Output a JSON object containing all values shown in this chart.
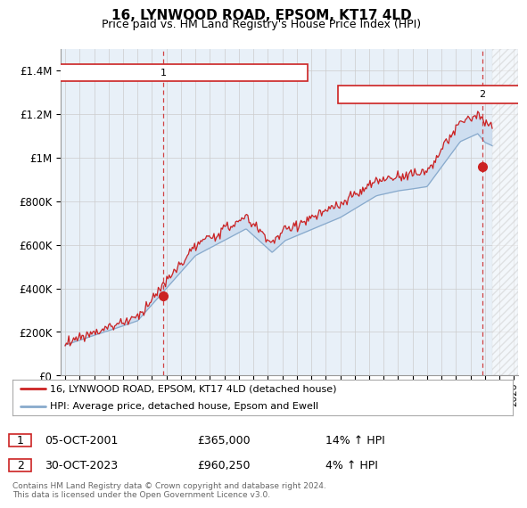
{
  "title": "16, LYNWOOD ROAD, EPSOM, KT17 4LD",
  "subtitle": "Price paid vs. HM Land Registry's House Price Index (HPI)",
  "ylabel_ticks": [
    "£0",
    "£200K",
    "£400K",
    "£600K",
    "£800K",
    "£1M",
    "£1.2M",
    "£1.4M"
  ],
  "ytick_values": [
    0,
    200000,
    400000,
    600000,
    800000,
    1000000,
    1200000,
    1400000
  ],
  "ylim": [
    0,
    1500000
  ],
  "xlim_start": 1994.7,
  "xlim_end": 2026.3,
  "legend_line1": "16, LYNWOOD ROAD, EPSOM, KT17 4LD (detached house)",
  "legend_line2": "HPI: Average price, detached house, Epsom and Ewell",
  "note1_num": "1",
  "note1_date": "05-OCT-2001",
  "note1_price": "£365,000",
  "note1_hpi": "14% ↑ HPI",
  "note2_num": "2",
  "note2_date": "30-OCT-2023",
  "note2_price": "£960,250",
  "note2_hpi": "4% ↑ HPI",
  "footer": "Contains HM Land Registry data © Crown copyright and database right 2024.\nThis data is licensed under the Open Government Licence v3.0.",
  "red_color": "#cc2222",
  "blue_color": "#88aacc",
  "fill_color": "#ccddf0",
  "bg_color": "#e8f0f8",
  "hatch_color": "#cccccc",
  "grid_color": "#cccccc",
  "marker1_x": 2001.77,
  "marker1_y": 365000,
  "marker2_x": 2023.83,
  "marker2_y": 960250,
  "data_end_x": 2024.5
}
